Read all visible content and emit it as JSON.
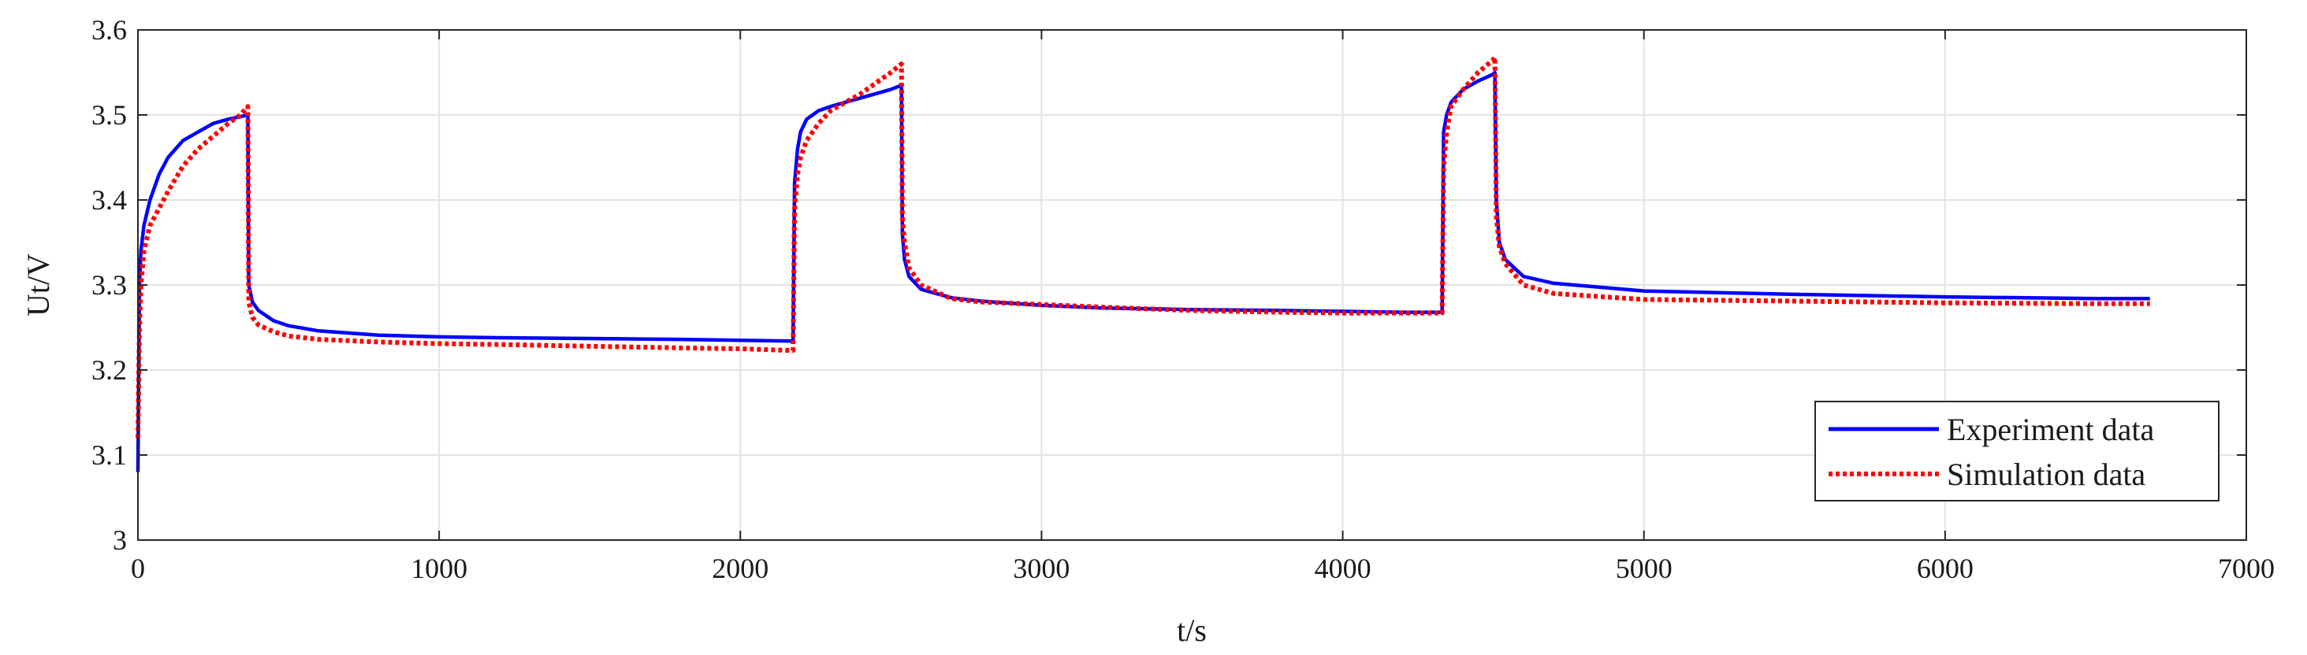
{
  "chart_data": {
    "type": "line",
    "title": "",
    "xlabel": "t/s",
    "ylabel": "Ut/V",
    "xlim": [
      0,
      7000
    ],
    "ylim": [
      3.0,
      3.6
    ],
    "xticks": [
      0,
      1000,
      2000,
      3000,
      4000,
      5000,
      6000,
      7000
    ],
    "xtick_labels": [
      "0",
      "1000",
      "2000",
      "3000",
      "4000",
      "5000",
      "6000",
      "7000"
    ],
    "yticks": [
      3.0,
      3.1,
      3.2,
      3.3,
      3.4,
      3.5,
      3.6
    ],
    "ytick_labels": [
      "3",
      "3.1",
      "3.2",
      "3.3",
      "3.4",
      "3.5",
      "3.6"
    ],
    "grid": true,
    "legend_position": "bottom-right",
    "series": [
      {
        "name": "Experiment data",
        "color": "#0000ff",
        "style": "solid",
        "x": [
          0,
          5,
          10,
          20,
          40,
          70,
          100,
          150,
          200,
          250,
          300,
          340,
          365,
          368,
          380,
          400,
          450,
          500,
          600,
          800,
          1000,
          1200,
          1500,
          1800,
          2000,
          2175,
          2180,
          2190,
          2200,
          2220,
          2260,
          2300,
          2400,
          2500,
          2535,
          2538,
          2545,
          2560,
          2600,
          2700,
          2800,
          3000,
          3200,
          3500,
          3800,
          4000,
          4200,
          4330,
          4335,
          4345,
          4360,
          4400,
          4450,
          4500,
          4505,
          4510,
          4520,
          4540,
          4600,
          4700,
          5000,
          5500,
          6000,
          6500,
          6680
        ],
        "y": [
          3.08,
          3.3,
          3.34,
          3.37,
          3.4,
          3.43,
          3.45,
          3.47,
          3.48,
          3.49,
          3.495,
          3.498,
          3.5,
          3.3,
          3.28,
          3.27,
          3.258,
          3.252,
          3.246,
          3.241,
          3.239,
          3.238,
          3.237,
          3.236,
          3.235,
          3.234,
          3.42,
          3.46,
          3.48,
          3.495,
          3.505,
          3.51,
          3.52,
          3.53,
          3.535,
          3.36,
          3.33,
          3.31,
          3.295,
          3.285,
          3.281,
          3.276,
          3.273,
          3.271,
          3.27,
          3.269,
          3.268,
          3.268,
          3.48,
          3.5,
          3.515,
          3.53,
          3.54,
          3.548,
          3.55,
          3.4,
          3.35,
          3.33,
          3.31,
          3.302,
          3.293,
          3.289,
          3.286,
          3.284,
          3.284
        ]
      },
      {
        "name": "Simulation data",
        "color": "#ff0000",
        "style": "dotted",
        "x": [
          0,
          5,
          10,
          20,
          40,
          70,
          100,
          150,
          200,
          250,
          300,
          340,
          365,
          368,
          380,
          400,
          450,
          500,
          600,
          800,
          1000,
          1200,
          1500,
          1800,
          2000,
          2175,
          2180,
          2190,
          2200,
          2220,
          2260,
          2300,
          2400,
          2500,
          2535,
          2538,
          2545,
          2560,
          2600,
          2700,
          2800,
          3000,
          3200,
          3500,
          3800,
          4000,
          4200,
          4330,
          4335,
          4345,
          4360,
          4400,
          4450,
          4500,
          4505,
          4510,
          4520,
          4540,
          4600,
          4700,
          5000,
          5500,
          6000,
          6500,
          6680
        ],
        "y": [
          3.12,
          3.25,
          3.3,
          3.34,
          3.37,
          3.39,
          3.41,
          3.44,
          3.46,
          3.475,
          3.49,
          3.5,
          3.51,
          3.28,
          3.262,
          3.253,
          3.245,
          3.24,
          3.236,
          3.233,
          3.231,
          3.23,
          3.228,
          3.226,
          3.225,
          3.223,
          3.39,
          3.43,
          3.45,
          3.47,
          3.49,
          3.505,
          3.525,
          3.55,
          3.56,
          3.38,
          3.35,
          3.32,
          3.3,
          3.284,
          3.28,
          3.277,
          3.274,
          3.27,
          3.268,
          3.267,
          3.267,
          3.267,
          3.44,
          3.48,
          3.51,
          3.53,
          3.55,
          3.565,
          3.568,
          3.38,
          3.345,
          3.325,
          3.3,
          3.29,
          3.283,
          3.281,
          3.279,
          3.278,
          3.278
        ]
      }
    ]
  }
}
